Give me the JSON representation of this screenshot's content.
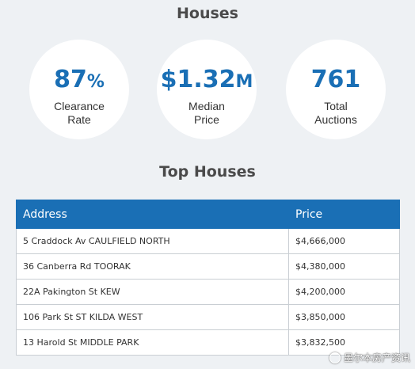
{
  "header": {
    "title": "Houses"
  },
  "stats": [
    {
      "value": "87",
      "unit": "%",
      "label_line1": "Clearance",
      "label_line2": "Rate"
    },
    {
      "value": "$1.32",
      "unit": "M",
      "label_line1": "Median",
      "label_line2": "Price"
    },
    {
      "value": "761",
      "unit": "",
      "label_line1": "Total",
      "label_line2": "Auctions"
    }
  ],
  "top_houses": {
    "title": "Top Houses",
    "columns": [
      "Address",
      "Price"
    ],
    "rows": [
      {
        "address": "5 Craddock Av CAULFIELD NORTH",
        "price": "$4,666,000"
      },
      {
        "address": "36 Canberra Rd TOORAK",
        "price": "$4,380,000"
      },
      {
        "address": "22A Pakington St KEW",
        "price": "$4,200,000"
      },
      {
        "address": "106 Park St ST KILDA WEST",
        "price": "$3,850,000"
      },
      {
        "address": "13 Harold St MIDDLE PARK",
        "price": "$3,832,500"
      }
    ]
  },
  "watermark": {
    "text": "墨尔本房产资讯",
    "icon": "wechat-icon"
  },
  "colors": {
    "accent": "#1a6fb5",
    "background": "#eef1f4",
    "title_text": "#4a4a4a"
  }
}
